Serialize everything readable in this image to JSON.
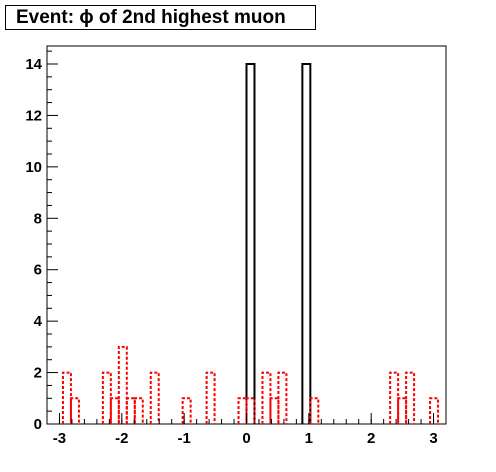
{
  "title": "Event: ϕ of 2nd highest muon",
  "chart_data": {
    "type": "histogram",
    "title": "Event: ϕ of 2nd highest muon",
    "xlabel": "",
    "ylabel": "",
    "xlim": [
      -3.2,
      3.2
    ],
    "ylim": [
      0,
      14.7
    ],
    "bin_width": 0.128,
    "x_ticks": [
      "-3",
      "-2",
      "-1",
      "0",
      "1",
      "2",
      "3"
    ],
    "y_ticks": [
      "0",
      "2",
      "4",
      "6",
      "8",
      "10",
      "12",
      "14"
    ],
    "series": [
      {
        "style": "solid",
        "color": "#000000",
        "bins": [
          {
            "x0": 0.0,
            "x1": 0.128,
            "value": 14
          },
          {
            "x0": 0.896,
            "x1": 1.024,
            "value": 14
          }
        ]
      },
      {
        "style": "dashed",
        "color": "#ff0000",
        "bins": [
          {
            "x0": -2.944,
            "x1": -2.816,
            "value": 2
          },
          {
            "x0": -2.816,
            "x1": -2.688,
            "value": 1
          },
          {
            "x0": -2.304,
            "x1": -2.176,
            "value": 2
          },
          {
            "x0": -2.176,
            "x1": -2.048,
            "value": 1
          },
          {
            "x0": -2.048,
            "x1": -1.92,
            "value": 3
          },
          {
            "x0": -1.92,
            "x1": -1.792,
            "value": 1
          },
          {
            "x0": -1.792,
            "x1": -1.664,
            "value": 1
          },
          {
            "x0": -1.536,
            "x1": -1.408,
            "value": 2
          },
          {
            "x0": -1.024,
            "x1": -0.896,
            "value": 1
          },
          {
            "x0": -0.64,
            "x1": -0.512,
            "value": 2
          },
          {
            "x0": -0.128,
            "x1": 0.0,
            "value": 1
          },
          {
            "x0": 0.0,
            "x1": 0.128,
            "value": 1
          },
          {
            "x0": 0.256,
            "x1": 0.384,
            "value": 2
          },
          {
            "x0": 0.384,
            "x1": 0.512,
            "value": 1
          },
          {
            "x0": 0.512,
            "x1": 0.64,
            "value": 2
          },
          {
            "x0": 1.024,
            "x1": 1.152,
            "value": 1
          },
          {
            "x0": 2.304,
            "x1": 2.432,
            "value": 2
          },
          {
            "x0": 2.432,
            "x1": 2.56,
            "value": 1
          },
          {
            "x0": 2.56,
            "x1": 2.688,
            "value": 2
          },
          {
            "x0": 2.944,
            "x1": 3.072,
            "value": 1
          }
        ]
      }
    ]
  }
}
